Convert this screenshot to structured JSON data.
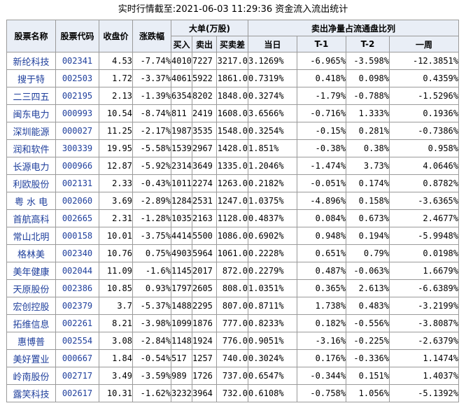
{
  "title": "实时行情截至:2021-06-03 11:29:36 资金流入流出统计",
  "headers": {
    "name": "股票名称",
    "code": "股票代码",
    "close": "收盘价",
    "change": "涨跌幅",
    "big_group": "大单(万股)",
    "buy": "买入",
    "sell": "卖出",
    "net": "买卖差",
    "ratio_group": "卖出净量占流通盘比列",
    "today": "当日",
    "t1": "T-1",
    "t2": "T-2",
    "week": "一周"
  },
  "rows": [
    {
      "name": "新纶科技",
      "code": "002341",
      "close": "4.53",
      "change": "-7.74%",
      "buy": "4010",
      "sell": "7227",
      "net": "3217.0",
      "today": "3.1269%",
      "t1": "-6.965%",
      "t2": "-3.598%",
      "week": "-12.3851%"
    },
    {
      "name": "搜于特",
      "code": "002503",
      "close": "1.72",
      "change": "-3.37%",
      "buy": "4061",
      "sell": "5922",
      "net": "1861.0",
      "today": "0.7319%",
      "t1": "0.418%",
      "t2": "0.098%",
      "week": "0.4359%"
    },
    {
      "name": "二三四五",
      "code": "002195",
      "close": "2.13",
      "change": "-1.39%",
      "buy": "6354",
      "sell": "8202",
      "net": "1848.0",
      "today": "0.3274%",
      "t1": "-1.79%",
      "t2": "-0.788%",
      "week": "-1.5296%"
    },
    {
      "name": "闽东电力",
      "code": "000993",
      "close": "10.54",
      "change": "-8.74%",
      "buy": "811",
      "sell": "2419",
      "net": "1608.0",
      "today": "3.6566%",
      "t1": "-0.716%",
      "t2": "1.333%",
      "week": "0.1936%"
    },
    {
      "name": "深圳能源",
      "code": "000027",
      "close": "11.25",
      "change": "-2.17%",
      "buy": "1987",
      "sell": "3535",
      "net": "1548.0",
      "today": "0.3254%",
      "t1": "-0.15%",
      "t2": "0.281%",
      "week": "-0.7386%"
    },
    {
      "name": "润和软件",
      "code": "300339",
      "close": "19.95",
      "change": "-5.58%",
      "buy": "1539",
      "sell": "2967",
      "net": "1428.0",
      "today": "1.851%",
      "t1": "-0.38%",
      "t2": "0.38%",
      "week": "0.958%"
    },
    {
      "name": "长源电力",
      "code": "000966",
      "close": "12.87",
      "change": "-5.92%",
      "buy": "2314",
      "sell": "3649",
      "net": "1335.0",
      "today": "1.2046%",
      "t1": "-1.474%",
      "t2": "3.73%",
      "week": "4.0646%"
    },
    {
      "name": "利欧股份",
      "code": "002131",
      "close": "2.33",
      "change": "-0.43%",
      "buy": "1011",
      "sell": "2274",
      "net": "1263.0",
      "today": "0.2182%",
      "t1": "-0.051%",
      "t2": "0.174%",
      "week": "0.8782%"
    },
    {
      "name": "粤 水 电",
      "code": "002060",
      "close": "3.69",
      "change": "-2.89%",
      "buy": "1284",
      "sell": "2531",
      "net": "1247.0",
      "today": "1.0375%",
      "t1": "-4.896%",
      "t2": "0.158%",
      "week": "-3.6365%"
    },
    {
      "name": "首航高科",
      "code": "002665",
      "close": "2.31",
      "change": "-1.28%",
      "buy": "1035",
      "sell": "2163",
      "net": "1128.0",
      "today": "0.4837%",
      "t1": "0.084%",
      "t2": "0.673%",
      "week": "2.4677%"
    },
    {
      "name": "常山北明",
      "code": "000158",
      "close": "10.01",
      "change": "-3.75%",
      "buy": "4414",
      "sell": "5500",
      "net": "1086.0",
      "today": "0.6902%",
      "t1": "0.948%",
      "t2": "0.194%",
      "week": "-5.9948%"
    },
    {
      "name": "格林美",
      "code": "002340",
      "close": "10.76",
      "change": "0.75%",
      "buy": "4903",
      "sell": "5964",
      "net": "1061.0",
      "today": "0.2228%",
      "t1": "0.651%",
      "t2": "0.79%",
      "week": "0.0198%"
    },
    {
      "name": "美年健康",
      "code": "002044",
      "close": "11.09",
      "change": "-1.6%",
      "buy": "1145",
      "sell": "2017",
      "net": "872.0",
      "today": "0.2279%",
      "t1": "0.487%",
      "t2": "-0.063%",
      "week": "1.6679%"
    },
    {
      "name": "天原股份",
      "code": "002386",
      "close": "10.85",
      "change": "0.93%",
      "buy": "1797",
      "sell": "2605",
      "net": "808.0",
      "today": "1.0351%",
      "t1": "0.365%",
      "t2": "2.613%",
      "week": "-6.6389%"
    },
    {
      "name": "宏创控股",
      "code": "002379",
      "close": "3.7",
      "change": "-5.37%",
      "buy": "1488",
      "sell": "2295",
      "net": "807.0",
      "today": "0.8711%",
      "t1": "1.738%",
      "t2": "0.483%",
      "week": "-3.2199%"
    },
    {
      "name": "拓维信息",
      "code": "002261",
      "close": "8.21",
      "change": "-3.98%",
      "buy": "1099",
      "sell": "1876",
      "net": "777.0",
      "today": "0.8233%",
      "t1": "0.182%",
      "t2": "-0.556%",
      "week": "-3.8087%"
    },
    {
      "name": "惠博普",
      "code": "002554",
      "close": "3.08",
      "change": "-2.84%",
      "buy": "1148",
      "sell": "1924",
      "net": "776.0",
      "today": "0.9051%",
      "t1": "-3.16%",
      "t2": "-0.225%",
      "week": "-2.6379%"
    },
    {
      "name": "美好置业",
      "code": "000667",
      "close": "1.84",
      "change": "-0.54%",
      "buy": "517",
      "sell": "1257",
      "net": "740.0",
      "today": "0.3024%",
      "t1": "0.176%",
      "t2": "-0.336%",
      "week": "1.1474%"
    },
    {
      "name": "岭南股份",
      "code": "002717",
      "close": "3.49",
      "change": "-3.59%",
      "buy": "989",
      "sell": "1726",
      "net": "737.0",
      "today": "0.6547%",
      "t1": "-0.344%",
      "t2": "0.151%",
      "week": "1.4037%"
    },
    {
      "name": "露笑科技",
      "code": "002617",
      "close": "10.31",
      "change": "-1.62%",
      "buy": "3232",
      "sell": "3964",
      "net": "732.0",
      "today": "0.6108%",
      "t1": "-0.758%",
      "t2": "1.056%",
      "week": "-5.1392%"
    }
  ]
}
